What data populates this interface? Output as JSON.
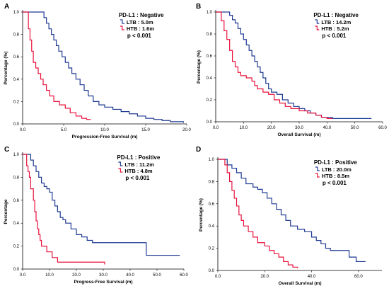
{
  "chart_data": [
    {
      "type": "line",
      "panel_letter": "A",
      "xlabel": "Progression-Free Survival (m)",
      "ylabel": "Percentage (%)",
      "xlim": [
        0,
        20
      ],
      "ylim": [
        0,
        1
      ],
      "x_ticks": [
        "0.0",
        "5.0",
        "10.0",
        "15.0",
        "20.0"
      ],
      "y_ticks": [
        "0.0",
        "0.2",
        "0.4",
        "0.6",
        "0.8",
        "1.0"
      ],
      "legend_title": "PD-L1 : Negative",
      "legend_placement": "top-right",
      "p_value": "p < 0.001",
      "series": [
        {
          "name": "LTB : 5.0m",
          "color": "#1f3a93",
          "points": [
            [
              0,
              1.0
            ],
            [
              2.4,
              1.0
            ],
            [
              2.6,
              0.95
            ],
            [
              2.9,
              0.9
            ],
            [
              3.2,
              0.85
            ],
            [
              3.5,
              0.8
            ],
            [
              3.8,
              0.75
            ],
            [
              4.1,
              0.7
            ],
            [
              4.4,
              0.65
            ],
            [
              4.8,
              0.6
            ],
            [
              5.2,
              0.55
            ],
            [
              5.6,
              0.5
            ],
            [
              6.0,
              0.45
            ],
            [
              6.5,
              0.4
            ],
            [
              7.0,
              0.35
            ],
            [
              7.5,
              0.3
            ],
            [
              8.0,
              0.25
            ],
            [
              8.6,
              0.2
            ],
            [
              9.3,
              0.17
            ],
            [
              10.0,
              0.15
            ],
            [
              11.0,
              0.13
            ],
            [
              12.0,
              0.11
            ],
            [
              13.0,
              0.09
            ],
            [
              14.0,
              0.07
            ],
            [
              15.0,
              0.05
            ],
            [
              16.0,
              0.04
            ],
            [
              17.0,
              0.03
            ],
            [
              18.0,
              0.02
            ],
            [
              19.6,
              0.01
            ]
          ]
        },
        {
          "name": "HTB : 1.6m",
          "color": "#e8123c",
          "points": [
            [
              0,
              1.0
            ],
            [
              0.6,
              1.0
            ],
            [
              0.7,
              0.85
            ],
            [
              0.9,
              0.75
            ],
            [
              1.1,
              0.65
            ],
            [
              1.3,
              0.55
            ],
            [
              1.6,
              0.5
            ],
            [
              1.9,
              0.45
            ],
            [
              2.2,
              0.4
            ],
            [
              2.5,
              0.35
            ],
            [
              2.9,
              0.3
            ],
            [
              3.3,
              0.25
            ],
            [
              3.8,
              0.2
            ],
            [
              4.5,
              0.17
            ],
            [
              5.2,
              0.14
            ],
            [
              5.8,
              0.1
            ],
            [
              6.5,
              0.07
            ],
            [
              7.2,
              0.05
            ],
            [
              7.8,
              0.04
            ],
            [
              8.3,
              0.04
            ]
          ]
        }
      ]
    },
    {
      "type": "line",
      "panel_letter": "B",
      "xlabel": "Overall Survival (m)",
      "ylabel": "Percentage (%)",
      "xlim": [
        0,
        60
      ],
      "ylim": [
        0,
        1
      ],
      "x_ticks": [
        "0.0",
        "10.0",
        "20.0",
        "30.0",
        "40.0",
        "50.0",
        "60.0"
      ],
      "y_ticks": [
        "0.0",
        "0.2",
        "0.4",
        "0.6",
        "0.8",
        "1.0"
      ],
      "legend_title": "PD-L1 : Negative",
      "legend_placement": "top-right",
      "p_value": "p < 0.001",
      "series": [
        {
          "name": "LTB : 14.2m",
          "color": "#1f3a93",
          "points": [
            [
              0,
              1.0
            ],
            [
              4,
              1.0
            ],
            [
              5,
              0.97
            ],
            [
              6,
              0.93
            ],
            [
              7,
              0.9
            ],
            [
              8,
              0.85
            ],
            [
              9,
              0.8
            ],
            [
              10,
              0.75
            ],
            [
              11,
              0.7
            ],
            [
              12,
              0.65
            ],
            [
              13,
              0.6
            ],
            [
              14,
              0.55
            ],
            [
              15,
              0.5
            ],
            [
              16,
              0.45
            ],
            [
              17,
              0.4
            ],
            [
              18,
              0.35
            ],
            [
              19,
              0.3
            ],
            [
              20,
              0.27
            ],
            [
              22,
              0.25
            ],
            [
              24,
              0.2
            ],
            [
              26,
              0.17
            ],
            [
              28,
              0.14
            ],
            [
              30,
              0.12
            ],
            [
              32,
              0.1
            ],
            [
              34,
              0.08
            ],
            [
              36,
              0.06
            ],
            [
              38,
              0.04
            ],
            [
              42,
              0.03
            ],
            [
              56,
              0.03
            ]
          ]
        },
        {
          "name": "HTB : 5.2m",
          "color": "#e8123c",
          "points": [
            [
              0,
              1.0
            ],
            [
              1.5,
              1.0
            ],
            [
              2,
              0.92
            ],
            [
              3,
              0.83
            ],
            [
              4,
              0.75
            ],
            [
              5,
              0.65
            ],
            [
              6,
              0.55
            ],
            [
              7,
              0.5
            ],
            [
              8,
              0.45
            ],
            [
              9,
              0.42
            ],
            [
              11,
              0.4
            ],
            [
              13,
              0.37
            ],
            [
              14,
              0.33
            ],
            [
              15,
              0.3
            ],
            [
              17,
              0.27
            ],
            [
              19,
              0.25
            ],
            [
              21,
              0.2
            ],
            [
              23,
              0.17
            ],
            [
              25,
              0.14
            ],
            [
              27,
              0.12
            ],
            [
              30,
              0.1
            ],
            [
              33,
              0.08
            ],
            [
              36,
              0.06
            ],
            [
              38,
              0.04
            ],
            [
              40,
              0.03
            ],
            [
              42,
              0.03
            ]
          ]
        }
      ]
    },
    {
      "type": "line",
      "panel_letter": "C",
      "xlabel": "Progress-Free Survival (m)",
      "ylabel": "Percentage",
      "xlim": [
        0,
        60
      ],
      "ylim": [
        0,
        1
      ],
      "x_ticks": [
        "0.0",
        "10.0",
        "20.0",
        "30.0",
        "40.0",
        "50.0",
        "60.0"
      ],
      "y_ticks": [
        "0.0",
        "0.2",
        "0.4",
        "0.6",
        "0.8",
        "1.0"
      ],
      "legend_title": "PD-L1 : Positive",
      "legend_placement": "top-right",
      "p_value": "p < 0.001",
      "series": [
        {
          "name": "LTB : 11.2m",
          "color": "#1f3a93",
          "points": [
            [
              0,
              1.0
            ],
            [
              2,
              1.0
            ],
            [
              3,
              0.95
            ],
            [
              4,
              0.9
            ],
            [
              5,
              0.85
            ],
            [
              6,
              0.8
            ],
            [
              7,
              0.75
            ],
            [
              8,
              0.72
            ],
            [
              9,
              0.7
            ],
            [
              10,
              0.67
            ],
            [
              11,
              0.6
            ],
            [
              12,
              0.55
            ],
            [
              13,
              0.5
            ],
            [
              14,
              0.45
            ],
            [
              15,
              0.43
            ],
            [
              16,
              0.4
            ],
            [
              18,
              0.35
            ],
            [
              20,
              0.3
            ],
            [
              22,
              0.28
            ],
            [
              24,
              0.25
            ],
            [
              26,
              0.23
            ],
            [
              46,
              0.23
            ],
            [
              46,
              0.12
            ],
            [
              58.5,
              0.12
            ]
          ]
        },
        {
          "name": "HTB : 4.8m",
          "color": "#e8123c",
          "points": [
            [
              0,
              1.0
            ],
            [
              1,
              1.0
            ],
            [
              1.5,
              0.9
            ],
            [
              2,
              0.85
            ],
            [
              2.5,
              0.8
            ],
            [
              3,
              0.7
            ],
            [
              4,
              0.6
            ],
            [
              4.5,
              0.5
            ],
            [
              5,
              0.42
            ],
            [
              5.5,
              0.35
            ],
            [
              6,
              0.3
            ],
            [
              6.5,
              0.25
            ],
            [
              7,
              0.2
            ],
            [
              9,
              0.15
            ],
            [
              11,
              0.1
            ],
            [
              13,
              0.06
            ],
            [
              30,
              0.06
            ],
            [
              30.5,
              0.04
            ]
          ]
        }
      ]
    },
    {
      "type": "line",
      "panel_letter": "D",
      "xlabel": "Overall Survival (m)",
      "ylabel": "Percentage (%)",
      "xlim": [
        0,
        70
      ],
      "ylim": [
        0,
        1
      ],
      "x_ticks": [
        "0.0",
        "20.0",
        "40.0",
        "60.0"
      ],
      "y_ticks": [
        "0.0",
        "0.2",
        "0.4",
        "0.6",
        "0.8",
        "1.0"
      ],
      "legend_title": "PD-L1 : Positive",
      "legend_placement": "top-right",
      "p_value": "p < 0.001",
      "series": [
        {
          "name": "LTB : 20.0m",
          "color": "#1f3a93",
          "points": [
            [
              0,
              1.0
            ],
            [
              2,
              1.0
            ],
            [
              4,
              0.95
            ],
            [
              6,
              0.92
            ],
            [
              8,
              0.88
            ],
            [
              10,
              0.83
            ],
            [
              12,
              0.78
            ],
            [
              15,
              0.75
            ],
            [
              17,
              0.73
            ],
            [
              19,
              0.7
            ],
            [
              21,
              0.65
            ],
            [
              23,
              0.6
            ],
            [
              25,
              0.55
            ],
            [
              27,
              0.5
            ],
            [
              29,
              0.45
            ],
            [
              31,
              0.4
            ],
            [
              34,
              0.37
            ],
            [
              37,
              0.35
            ],
            [
              40,
              0.3
            ],
            [
              42,
              0.27
            ],
            [
              44,
              0.24
            ],
            [
              46,
              0.2
            ],
            [
              48,
              0.18
            ],
            [
              54,
              0.18
            ],
            [
              56,
              0.12
            ],
            [
              59,
              0.08
            ],
            [
              63,
              0.08
            ]
          ]
        },
        {
          "name": "HTB : 8.5m",
          "color": "#e8123c",
          "points": [
            [
              0,
              1.0
            ],
            [
              2,
              1.0
            ],
            [
              3,
              0.95
            ],
            [
              4,
              0.88
            ],
            [
              5,
              0.8
            ],
            [
              6,
              0.72
            ],
            [
              7,
              0.65
            ],
            [
              8,
              0.58
            ],
            [
              9,
              0.5
            ],
            [
              10,
              0.45
            ],
            [
              11,
              0.4
            ],
            [
              13,
              0.35
            ],
            [
              15,
              0.3
            ],
            [
              17,
              0.25
            ],
            [
              20,
              0.22
            ],
            [
              22,
              0.18
            ],
            [
              24,
              0.15
            ],
            [
              26,
              0.12
            ],
            [
              28,
              0.08
            ],
            [
              30,
              0.05
            ],
            [
              32,
              0.03
            ],
            [
              34,
              0.02
            ]
          ]
        }
      ]
    }
  ]
}
